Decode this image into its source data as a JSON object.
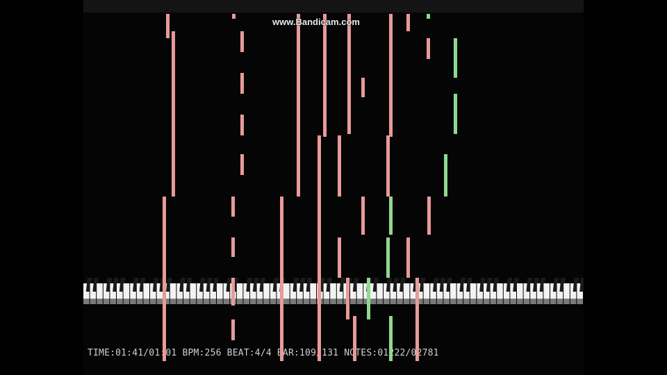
{
  "watermark": "www.Bandicam.com",
  "status": {
    "text": "TIME:01:41/01:01 BPM:256 BEAT:4/4 BAR:109/131 NOTES:01222/02781"
  },
  "colors": {
    "note_pink": "#e89a9a",
    "note_green": "#8fd88f",
    "background": "#050505"
  },
  "icons": []
}
